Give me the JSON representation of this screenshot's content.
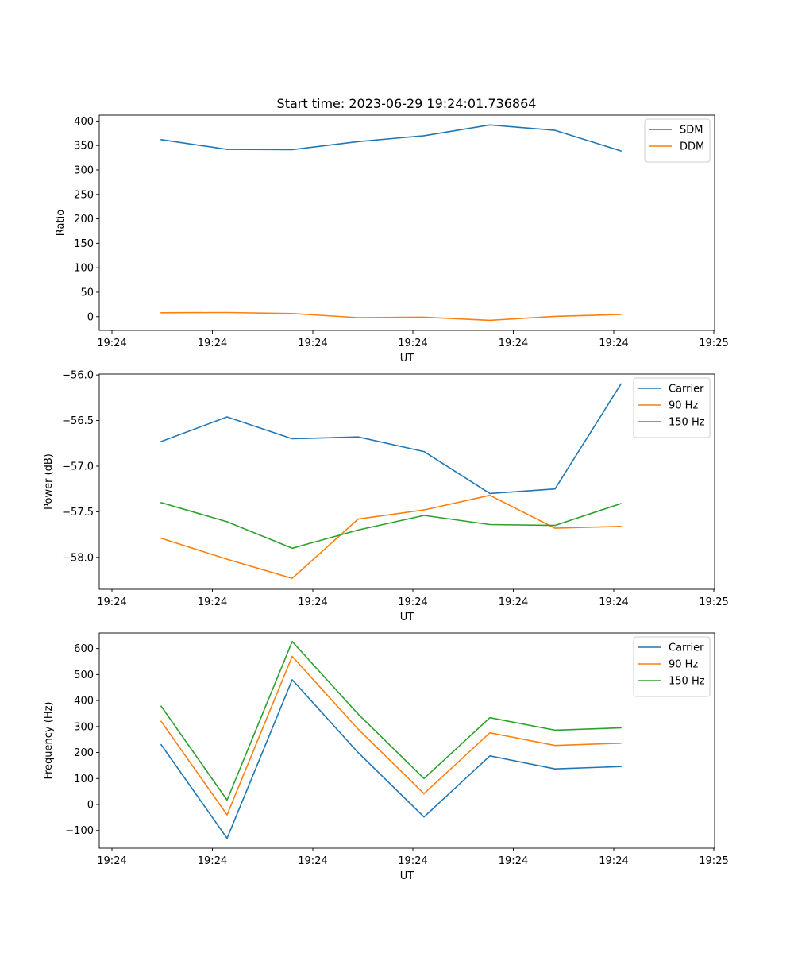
{
  "title": "Start time: 2023-06-29 19:24:01.736864",
  "chart_data": [
    {
      "type": "line",
      "xlabel": "UT",
      "ylabel": "Ratio",
      "x_tick_labels": [
        "19:24",
        "19:24",
        "19:24",
        "19:24",
        "19:24",
        "19:24",
        "19:25"
      ],
      "y_ticks": [
        0,
        50,
        100,
        150,
        200,
        250,
        300,
        350,
        400
      ],
      "y_tick_labels": [
        "0",
        "50",
        "100",
        "150",
        "200",
        "250",
        "300",
        "350",
        "400"
      ],
      "ylim": [
        -28,
        412
      ],
      "legend": "top-right",
      "grid": false,
      "series": [
        {
          "name": "SDM",
          "color": "#1f77b4",
          "values": [
            362,
            342,
            341.5,
            358,
            370,
            392,
            381,
            339
          ]
        },
        {
          "name": "DDM",
          "color": "#ff7f0e",
          "values": [
            8,
            8.5,
            6.5,
            -2,
            -1,
            -7.5,
            0.5,
            4.5
          ]
        }
      ]
    },
    {
      "type": "line",
      "xlabel": "UT",
      "ylabel": "Power (dB)",
      "x_tick_labels": [
        "19:24",
        "19:24",
        "19:24",
        "19:24",
        "19:24",
        "19:24",
        "19:25"
      ],
      "y_ticks": [
        -58.0,
        -57.5,
        -57.0,
        -56.5,
        -56.0
      ],
      "y_tick_labels": [
        "−58.0",
        "−57.5",
        "−57.0",
        "−56.5",
        "−56.0"
      ],
      "ylim": [
        -58.35,
        -55.99
      ],
      "legend": "top-right",
      "grid": false,
      "series": [
        {
          "name": "Carrier",
          "color": "#1f77b4",
          "values": [
            -56.73,
            -56.46,
            -56.7,
            -56.68,
            -56.84,
            -57.3,
            -57.25,
            -56.1
          ]
        },
        {
          "name": "90 Hz",
          "color": "#ff7f0e",
          "values": [
            -57.79,
            -58.02,
            -58.23,
            -57.58,
            -57.48,
            -57.32,
            -57.68,
            -57.66
          ]
        },
        {
          "name": "150 Hz",
          "color": "#2ca02c",
          "values": [
            -57.4,
            -57.61,
            -57.9,
            -57.7,
            -57.54,
            -57.64,
            -57.65,
            -57.41
          ]
        }
      ]
    },
    {
      "type": "line",
      "xlabel": "UT",
      "ylabel": "Frequency (Hz)",
      "x_tick_labels": [
        "19:24",
        "19:24",
        "19:24",
        "19:24",
        "19:24",
        "19:24",
        "19:25"
      ],
      "y_ticks": [
        -100,
        0,
        100,
        200,
        300,
        400,
        500,
        600
      ],
      "y_tick_labels": [
        "−100",
        "0",
        "100",
        "200",
        "300",
        "400",
        "500",
        "600"
      ],
      "ylim": [
        -168,
        660
      ],
      "legend": "top-right",
      "grid": false,
      "series": [
        {
          "name": "Carrier",
          "color": "#1f77b4",
          "values": [
            230,
            -130,
            480,
            200,
            -48,
            187,
            137,
            146
          ]
        },
        {
          "name": "90 Hz",
          "color": "#ff7f0e",
          "values": [
            320,
            -40,
            570,
            290,
            42,
            276,
            227,
            236
          ]
        },
        {
          "name": "150 Hz",
          "color": "#2ca02c",
          "values": [
            378,
            17,
            627,
            348,
            100,
            334,
            286,
            295
          ]
        }
      ]
    }
  ]
}
